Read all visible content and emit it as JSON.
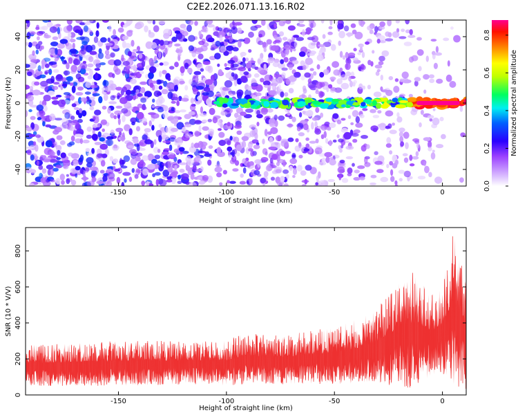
{
  "title": "C2E2.2026.071.13.16.R02",
  "chart_data": [
    {
      "type": "heatmap",
      "xlabel": "Height of straight line (km)",
      "ylabel": "Frequency (Hz)",
      "xlim": [
        -193,
        11
      ],
      "ylim": [
        -50,
        50
      ],
      "xticks": [
        -150,
        -100,
        -50,
        0
      ],
      "xtick_labels": [
        "-150",
        "-100",
        "-50",
        "0"
      ],
      "yticks": [
        -40,
        -20,
        0,
        20,
        40
      ],
      "ytick_labels": [
        "-40",
        "-20",
        "0",
        "20",
        "40"
      ],
      "colorbar": {
        "label": "Normalized spectral amplitude",
        "range": [
          0,
          0.88
        ],
        "ticks": [
          0,
          0.2,
          0.4,
          0.6,
          0.8
        ],
        "tick_labels": [
          "0.0",
          "0.2",
          "0.4",
          "0.6",
          "0.8"
        ],
        "colors": [
          "#ffffff",
          "#b380ff",
          "#6a00ff",
          "#0000ff",
          "#00d8ff",
          "#00ff40",
          "#ffff00",
          "#ff8000",
          "#ff0000",
          "#ff0080"
        ]
      },
      "signal_band": {
        "frequency_hz": 0,
        "onset_km": -105,
        "peak_range_km": [
          -15,
          8
        ],
        "peak_amplitude": 0.88
      },
      "noise_level": 0.3
    },
    {
      "type": "line",
      "xlabel": "Height of straight line (km)",
      "ylabel": "SNR (10 * V/V)",
      "xlim": [
        -193,
        11
      ],
      "ylim": [
        0,
        930
      ],
      "xticks": [
        -150,
        -100,
        -50,
        0
      ],
      "xtick_labels": [
        "-150",
        "-100",
        "-50",
        "0"
      ],
      "yticks": [
        0,
        200,
        400,
        600,
        800
      ],
      "ytick_labels": [
        "0",
        "200",
        "400",
        "600",
        "800"
      ],
      "color": "#ee3030",
      "envelope": {
        "x": [
          -193,
          -150,
          -110,
          -100,
          -90,
          -80,
          -70,
          -60,
          -50,
          -40,
          -30,
          -20,
          -15,
          -10,
          -5,
          0,
          5,
          11
        ],
        "low": [
          50,
          50,
          60,
          50,
          60,
          60,
          60,
          60,
          60,
          60,
          70,
          40,
          30,
          80,
          100,
          120,
          60,
          20
        ],
        "high": [
          280,
          300,
          300,
          310,
          350,
          330,
          340,
          360,
          380,
          420,
          480,
          650,
          700,
          640,
          560,
          620,
          900,
          700
        ]
      }
    }
  ]
}
